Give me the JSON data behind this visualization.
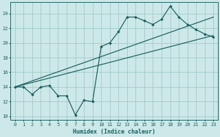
{
  "xlabel": "Humidex (Indice chaleur)",
  "background_color": "#cde8e8",
  "grid_color": "#9fc8c8",
  "line_color": "#1a6060",
  "xlim": [
    -0.5,
    23.5
  ],
  "ylim": [
    9.5,
    25.5
  ],
  "xticks": [
    0,
    1,
    2,
    3,
    4,
    5,
    6,
    7,
    8,
    9,
    10,
    11,
    12,
    13,
    14,
    15,
    16,
    17,
    18,
    19,
    20,
    21,
    22,
    23
  ],
  "yticks": [
    10,
    12,
    14,
    16,
    18,
    20,
    22,
    24
  ],
  "line1_x": [
    0,
    1,
    2,
    3,
    4,
    5,
    6,
    7,
    8,
    9,
    10,
    11,
    12,
    13,
    14,
    15,
    16,
    17,
    18,
    19,
    20,
    21,
    22,
    23
  ],
  "line1_y": [
    14.0,
    14.0,
    13.0,
    14.0,
    14.2,
    12.8,
    12.8,
    10.2,
    12.2,
    12.0,
    19.5,
    20.0,
    21.5,
    23.5,
    23.5,
    23.0,
    22.5,
    23.2,
    25.0,
    23.5,
    22.5,
    21.8,
    21.2,
    20.8
  ],
  "line2_x": [
    0,
    23
  ],
  "line2_y": [
    14.0,
    21.0
  ],
  "line3_x": [
    0,
    23
  ],
  "line3_y": [
    14.0,
    23.5
  ],
  "xlabel_fontsize": 6.0,
  "tick_fontsize": 5.0
}
